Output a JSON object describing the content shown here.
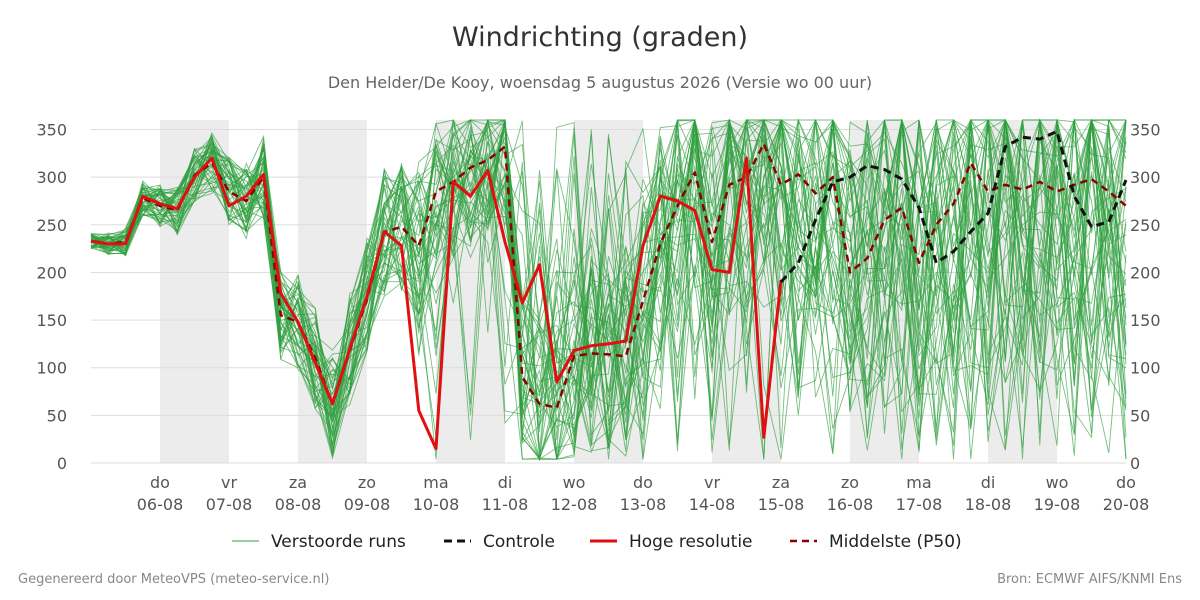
{
  "header": {
    "title": "Windrichting (graden)",
    "subtitle": "Den Helder/De Kooy, woensdag  5 augustus 2026 (Versie wo 00 uur)"
  },
  "footer": {
    "left": "Gegenereerd door MeteoVPS (meteo-service.nl)",
    "right": "Bron: ECMWF AIFS/KNMI Ens"
  },
  "colors": {
    "ensemble": "#2e9e3e",
    "control": "#111111",
    "high_res": "#e01010",
    "median": "#8b0000",
    "weekend_shade": "#ececec",
    "grid": "#dddddd"
  },
  "chart_data": {
    "type": "line",
    "title": "Windrichting (graden)",
    "ylim": [
      0,
      360
    ],
    "yticks": [
      0,
      50,
      100,
      150,
      200,
      250,
      300,
      350
    ],
    "x_start": "2026-08-05 00:00",
    "x_end": "2026-08-20 00:00",
    "x_ticks": [
      {
        "day": "do",
        "date": "06-08"
      },
      {
        "day": "vr",
        "date": "07-08"
      },
      {
        "day": "za",
        "date": "08-08"
      },
      {
        "day": "zo",
        "date": "09-08"
      },
      {
        "day": "ma",
        "date": "10-08"
      },
      {
        "day": "di",
        "date": "11-08"
      },
      {
        "day": "wo",
        "date": "12-08"
      },
      {
        "day": "do",
        "date": "13-08"
      },
      {
        "day": "vr",
        "date": "14-08"
      },
      {
        "day": "za",
        "date": "15-08"
      },
      {
        "day": "zo",
        "date": "16-08"
      },
      {
        "day": "ma",
        "date": "17-08"
      },
      {
        "day": "di",
        "date": "18-08"
      },
      {
        "day": "wo",
        "date": "19-08"
      },
      {
        "day": "do",
        "date": "20-08"
      }
    ],
    "shaded_days": [
      "06-08",
      "08-08",
      "10-08",
      "12-08",
      "14-08",
      "16-08",
      "18-08"
    ],
    "legend": {
      "placement": "bottom",
      "entries": [
        "Verstoorde runs",
        "Controle",
        "Hoge resolutie",
        "Middelste (P50)"
      ]
    },
    "series": [
      {
        "name": "Hoge resolutie",
        "style": "solid",
        "x": [
          "2026-08-05 00:00",
          "2026-08-05 06:00",
          "2026-08-05 12:00",
          "2026-08-05 18:00",
          "2026-08-06 00:00",
          "2026-08-06 06:00",
          "2026-08-06 12:00",
          "2026-08-06 18:00",
          "2026-08-07 00:00",
          "2026-08-07 06:00",
          "2026-08-07 12:00",
          "2026-08-07 18:00",
          "2026-08-08 00:00",
          "2026-08-08 06:00",
          "2026-08-08 12:00",
          "2026-08-08 18:00",
          "2026-08-09 00:00",
          "2026-08-09 06:00",
          "2026-08-09 12:00",
          "2026-08-09 18:00",
          "2026-08-10 00:00",
          "2026-08-10 06:00",
          "2026-08-10 12:00",
          "2026-08-10 18:00",
          "2026-08-11 00:00",
          "2026-08-11 06:00",
          "2026-08-11 12:00",
          "2026-08-11 18:00",
          "2026-08-12 00:00",
          "2026-08-12 06:00",
          "2026-08-12 12:00",
          "2026-08-12 18:00",
          "2026-08-13 00:00",
          "2026-08-13 06:00",
          "2026-08-13 12:00",
          "2026-08-13 18:00",
          "2026-08-14 00:00",
          "2026-08-14 06:00",
          "2026-08-14 12:00",
          "2026-08-14 18:00",
          "2026-08-15 00:00"
        ],
        "values": [
          233,
          230,
          230,
          280,
          272,
          267,
          300,
          320,
          270,
          280,
          303,
          178,
          148,
          105,
          62,
          120,
          175,
          243,
          228,
          55,
          15,
          295,
          280,
          307,
          232,
          168,
          208,
          85,
          118,
          123,
          125,
          128,
          228,
          280,
          275,
          265,
          203,
          200,
          320,
          27,
          192
        ]
      },
      {
        "name": "Controle",
        "style": "dashed",
        "x": [
          "2026-08-15 00:00",
          "2026-08-15 06:00",
          "2026-08-15 12:00",
          "2026-08-15 18:00",
          "2026-08-16 00:00",
          "2026-08-16 06:00",
          "2026-08-16 12:00",
          "2026-08-16 18:00",
          "2026-08-17 00:00",
          "2026-08-17 06:00",
          "2026-08-17 12:00",
          "2026-08-17 18:00",
          "2026-08-18 00:00",
          "2026-08-18 06:00",
          "2026-08-18 12:00",
          "2026-08-18 18:00",
          "2026-08-19 00:00",
          "2026-08-19 06:00",
          "2026-08-19 12:00",
          "2026-08-19 18:00",
          "2026-08-20 00:00"
        ],
        "values": [
          190,
          210,
          255,
          295,
          300,
          312,
          308,
          298,
          268,
          210,
          222,
          243,
          262,
          332,
          342,
          340,
          348,
          280,
          248,
          253,
          297
        ]
      },
      {
        "name": "Middelste (P50)",
        "style": "dashed",
        "x": [
          "2026-08-05 00:00",
          "2026-08-05 06:00",
          "2026-08-05 12:00",
          "2026-08-05 18:00",
          "2026-08-06 00:00",
          "2026-08-06 06:00",
          "2026-08-06 12:00",
          "2026-08-06 18:00",
          "2026-08-07 00:00",
          "2026-08-07 06:00",
          "2026-08-07 12:00",
          "2026-08-07 18:00",
          "2026-08-08 00:00",
          "2026-08-08 06:00",
          "2026-08-08 12:00",
          "2026-08-08 18:00",
          "2026-08-09 00:00",
          "2026-08-09 06:00",
          "2026-08-09 12:00",
          "2026-08-09 18:00",
          "2026-08-10 00:00",
          "2026-08-10 06:00",
          "2026-08-10 12:00",
          "2026-08-10 18:00",
          "2026-08-11 00:00",
          "2026-08-11 06:00",
          "2026-08-11 12:00",
          "2026-08-11 18:00",
          "2026-08-12 00:00",
          "2026-08-12 06:00",
          "2026-08-12 12:00",
          "2026-08-12 18:00",
          "2026-08-13 00:00",
          "2026-08-13 06:00",
          "2026-08-13 12:00",
          "2026-08-13 18:00",
          "2026-08-14 00:00",
          "2026-08-14 06:00",
          "2026-08-14 12:00",
          "2026-08-14 18:00",
          "2026-08-15 00:00",
          "2026-08-15 06:00",
          "2026-08-15 12:00",
          "2026-08-15 18:00",
          "2026-08-16 00:00",
          "2026-08-16 06:00",
          "2026-08-16 12:00",
          "2026-08-16 18:00",
          "2026-08-17 00:00",
          "2026-08-17 06:00",
          "2026-08-17 12:00",
          "2026-08-17 18:00",
          "2026-08-18 00:00",
          "2026-08-18 06:00",
          "2026-08-18 12:00",
          "2026-08-18 18:00",
          "2026-08-19 00:00",
          "2026-08-19 06:00",
          "2026-08-19 12:00",
          "2026-08-19 18:00",
          "2026-08-20 00:00"
        ],
        "values": [
          233,
          230,
          232,
          278,
          270,
          265,
          302,
          315,
          285,
          275,
          300,
          155,
          148,
          110,
          62,
          118,
          172,
          242,
          248,
          228,
          285,
          295,
          310,
          318,
          332,
          90,
          62,
          58,
          112,
          115,
          114,
          112,
          170,
          230,
          270,
          305,
          232,
          292,
          300,
          335,
          292,
          303,
          283,
          300,
          200,
          215,
          255,
          268,
          210,
          250,
          272,
          315,
          285,
          292,
          287,
          295,
          285,
          292,
          298,
          285,
          270
        ]
      }
    ]
  }
}
